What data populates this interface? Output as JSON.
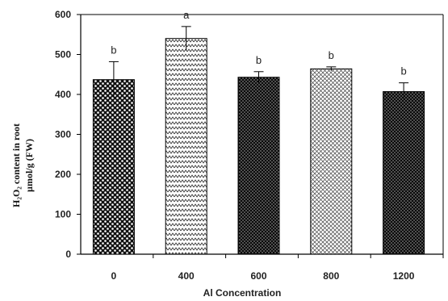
{
  "chart_data": {
    "type": "bar",
    "categories": [
      "0",
      "400",
      "600",
      "800",
      "1200"
    ],
    "values": [
      437,
      540,
      443,
      464,
      407
    ],
    "errors": [
      45,
      30,
      14,
      5,
      22
    ],
    "significance": [
      "b",
      "a",
      "b",
      "b",
      "b"
    ],
    "patterns": [
      "dots-dense",
      "zigzag",
      "dots-fine",
      "crosshatch",
      "dots-fine"
    ],
    "xlabel": "Al Concentration",
    "ylabel_line1": "H₂O₂ content in root",
    "ylabel_line2": "µmol/g (FW)",
    "ylim": [
      0,
      600
    ],
    "yticks": [
      0,
      100,
      200,
      300,
      400,
      500,
      600
    ],
    "grid": false,
    "legend": "none"
  }
}
